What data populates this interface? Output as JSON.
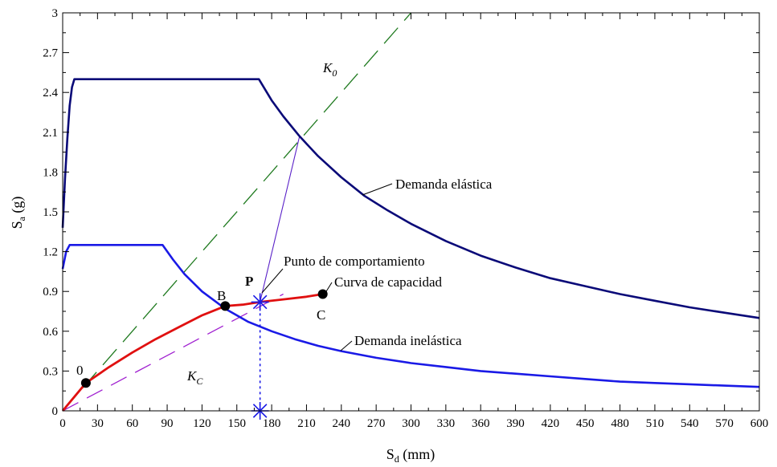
{
  "chart_data": {
    "type": "line",
    "xlabel": {
      "main": "S",
      "sub": "d",
      "rest": " (mm)"
    },
    "ylabel": {
      "main": "S",
      "sub": "a",
      "rest": " (g)"
    },
    "xlim": [
      0,
      600
    ],
    "ylim": [
      0,
      3
    ],
    "x_ticks": [
      0,
      30,
      60,
      90,
      120,
      150,
      180,
      210,
      240,
      270,
      300,
      330,
      360,
      390,
      420,
      450,
      480,
      510,
      540,
      570,
      600
    ],
    "x_tick_labels": [
      "0",
      "30",
      "60",
      "90",
      "120",
      "150",
      "180",
      "210",
      "240",
      "270",
      "300",
      "330",
      "360",
      "390",
      "420",
      "450",
      "480",
      "510",
      "540",
      "570",
      "600"
    ],
    "y_ticks": [
      0,
      0.3,
      0.6,
      0.9,
      1.2,
      1.5,
      1.8,
      2.1,
      2.4,
      2.7,
      3.0
    ],
    "y_tick_labels": [
      "0",
      "0.3",
      "0.6",
      "0.9",
      "1.2",
      "1.5",
      "1.8",
      "2.1",
      "2.4",
      "2.7",
      "3"
    ],
    "grid": false,
    "series": [
      {
        "name": "Demanda elástica",
        "color": "#0a0a78",
        "points": [
          [
            0,
            1.38
          ],
          [
            2,
            1.75
          ],
          [
            4,
            2.05
          ],
          [
            6,
            2.3
          ],
          [
            8,
            2.44
          ],
          [
            10,
            2.5
          ],
          [
            169,
            2.5
          ],
          [
            180,
            2.34
          ],
          [
            190,
            2.22
          ],
          [
            204,
            2.07
          ],
          [
            220,
            1.92
          ],
          [
            240,
            1.76
          ],
          [
            260,
            1.62
          ],
          [
            280,
            1.51
          ],
          [
            300,
            1.41
          ],
          [
            330,
            1.28
          ],
          [
            360,
            1.17
          ],
          [
            390,
            1.08
          ],
          [
            420,
            1.0
          ],
          [
            450,
            0.94
          ],
          [
            480,
            0.88
          ],
          [
            510,
            0.83
          ],
          [
            540,
            0.78
          ],
          [
            570,
            0.74
          ],
          [
            600,
            0.7
          ]
        ]
      },
      {
        "name": "Demanda inelástica",
        "color": "#1a1ae6",
        "points": [
          [
            0,
            1.07
          ],
          [
            3,
            1.2
          ],
          [
            6,
            1.25
          ],
          [
            86,
            1.25
          ],
          [
            95,
            1.14
          ],
          [
            105,
            1.03
          ],
          [
            120,
            0.9
          ],
          [
            140,
            0.77
          ],
          [
            160,
            0.67
          ],
          [
            180,
            0.6
          ],
          [
            200,
            0.54
          ],
          [
            220,
            0.49
          ],
          [
            240,
            0.45
          ],
          [
            270,
            0.4
          ],
          [
            300,
            0.36
          ],
          [
            330,
            0.33
          ],
          [
            360,
            0.3
          ],
          [
            390,
            0.28
          ],
          [
            420,
            0.26
          ],
          [
            450,
            0.24
          ],
          [
            480,
            0.22
          ],
          [
            510,
            0.21
          ],
          [
            540,
            0.2
          ],
          [
            570,
            0.19
          ],
          [
            600,
            0.18
          ]
        ]
      },
      {
        "name": "Curva de capacidad",
        "color": "#e01010",
        "points": [
          [
            0,
            0
          ],
          [
            20,
            0.21
          ],
          [
            40,
            0.33
          ],
          [
            60,
            0.44
          ],
          [
            80,
            0.54
          ],
          [
            100,
            0.63
          ],
          [
            120,
            0.72
          ],
          [
            140,
            0.79
          ],
          [
            155,
            0.8
          ],
          [
            170,
            0.82
          ],
          [
            190,
            0.84
          ],
          [
            210,
            0.86
          ],
          [
            224,
            0.88
          ]
        ]
      }
    ],
    "k0_line": {
      "label_main": "K",
      "label_sub": "0",
      "color": "#1f7a1f",
      "points": [
        [
          0,
          0
        ],
        [
          300,
          3.0
        ]
      ]
    },
    "kc_line": {
      "label_main": "K",
      "label_sub": "C",
      "color": "#a020d0",
      "points": [
        [
          0,
          0
        ],
        [
          190,
          0.88
        ]
      ]
    },
    "radial_line": {
      "color": "#5a22c8",
      "points": [
        [
          170,
          0.82
        ],
        [
          204,
          2.07
        ]
      ]
    },
    "marked_points": [
      {
        "label": "0",
        "x": 20,
        "y": 0.21
      },
      {
        "label": "B",
        "x": 140,
        "y": 0.79
      },
      {
        "label": "C",
        "x": 224,
        "y": 0.88
      }
    ],
    "performance_point": {
      "label": "P",
      "x": 170,
      "y": 0.82,
      "color": "#1a1ae6"
    },
    "annotations": [
      {
        "text": "Demanda elástica",
        "x": 260,
        "y": 1.9
      },
      {
        "text": "Demanda inelástica",
        "x": 240,
        "y": 0.56
      },
      {
        "text": "Punto de comportamiento",
        "x": 180,
        "y": 1.14
      },
      {
        "text": "Curva de capacidad",
        "x": 225,
        "y": 1.0
      }
    ]
  }
}
